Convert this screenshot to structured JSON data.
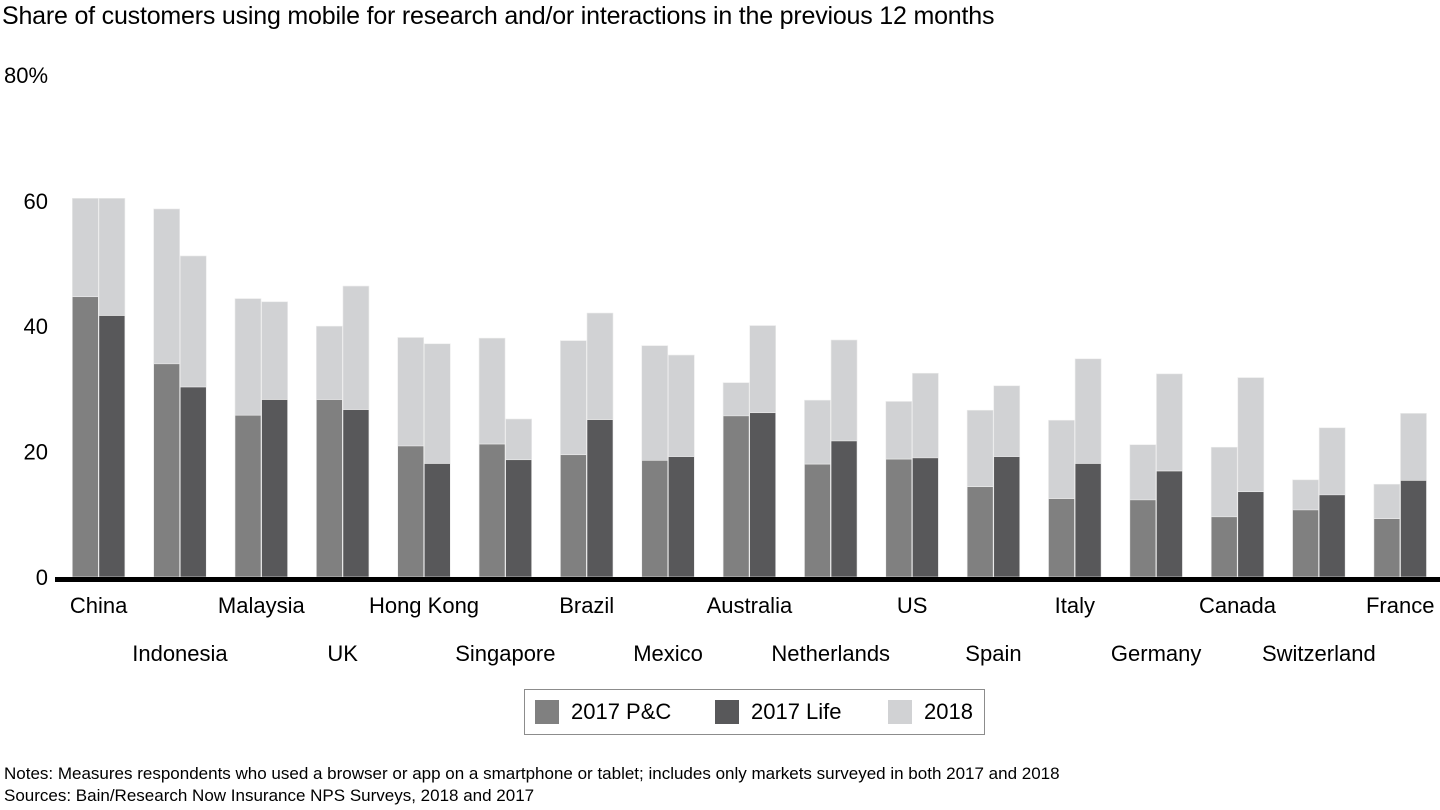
{
  "title": "Share of customers using mobile for research and/or interactions in the previous 12 months",
  "y_unit_label": "80%",
  "colors": {
    "p_and_c_2017": "#808080",
    "life_2017": "#58585a",
    "y2018": "#d1d2d4",
    "axis": "#000000"
  },
  "legend": [
    {
      "label": "2017 P&C",
      "color": "#808080"
    },
    {
      "label": "2017 Life",
      "color": "#58585a"
    },
    {
      "label": "2018",
      "color": "#d1d2d4"
    }
  ],
  "notes": "Notes: Measures respondents who used a browser or app on a smartphone or tablet; includes only markets surveyed in both 2017 and 2018",
  "sources": "Sources: Bain/Research Now Insurance NPS Surveys, 2018 and 2017",
  "chart_data": {
    "type": "bar",
    "title": "Share of customers using mobile for research and/or interactions in the previous 12 months",
    "xlabel": "",
    "ylabel": "",
    "ylim": [
      0,
      80
    ],
    "y_ticks": [
      0,
      20,
      40,
      60
    ],
    "y_tick_labels": [
      "0",
      "20",
      "40",
      "60"
    ],
    "y_top_label": "80%",
    "grid": false,
    "legend_position": "bottom-center",
    "note_on_encoding": "Each market has a P&C bar and a Life bar; dark segment = 2017 share, light segment extends to 2018 share (overlay).",
    "categories": [
      "China",
      "Indonesia",
      "Malaysia",
      "UK",
      "Hong Kong",
      "Singapore",
      "Brazil",
      "Mexico",
      "Australia",
      "Netherlands",
      "US",
      "Spain",
      "Italy",
      "Germany",
      "Canada",
      "Switzerland",
      "France"
    ],
    "series": [
      {
        "name": "2017 P&C",
        "values": [
          44.7,
          34.0,
          25.8,
          28.3,
          20.9,
          21.2,
          19.5,
          18.6,
          25.7,
          18.0,
          18.8,
          14.4,
          12.5,
          12.3,
          9.6,
          10.7,
          9.3
        ]
      },
      {
        "name": "2018 P&C",
        "values": [
          60.4,
          58.7,
          44.4,
          40.0,
          38.2,
          38.1,
          37.7,
          36.9,
          31.0,
          28.2,
          28.0,
          26.6,
          25.0,
          21.1,
          20.7,
          15.5,
          14.8
        ]
      },
      {
        "name": "2017 Life",
        "values": [
          41.7,
          30.3,
          28.3,
          26.7,
          18.1,
          18.7,
          25.1,
          19.2,
          26.2,
          21.7,
          19.0,
          19.2,
          18.1,
          16.9,
          13.6,
          13.1,
          15.4
        ]
      },
      {
        "name": "2018 Life",
        "values": [
          60.4,
          51.2,
          43.9,
          46.4,
          37.2,
          25.2,
          42.1,
          35.4,
          40.1,
          37.8,
          32.5,
          30.5,
          34.8,
          32.4,
          31.8,
          23.8,
          26.1
        ]
      }
    ]
  }
}
